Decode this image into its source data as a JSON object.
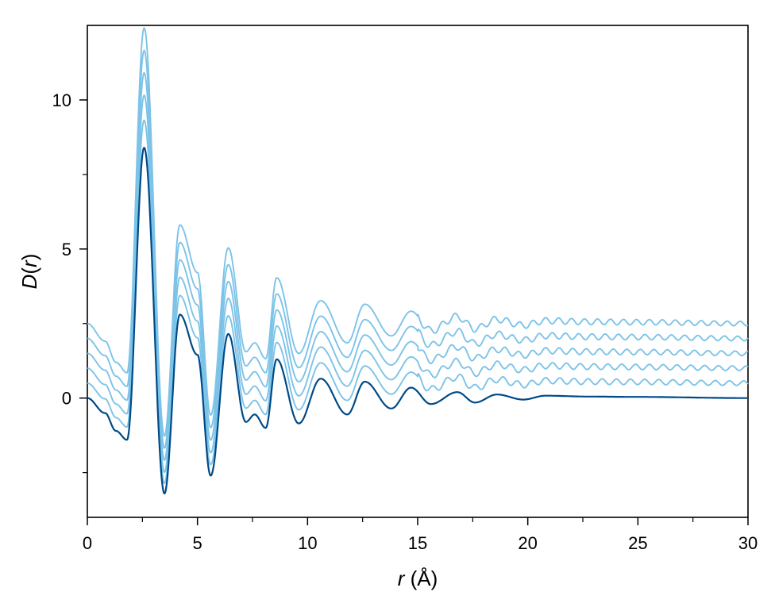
{
  "chart_data": {
    "type": "line",
    "xlabel": {
      "var": "r",
      "unit": " (Å)"
    },
    "ylabel": {
      "var_D": "D",
      "open": "(",
      "var_r": "r",
      "close": ")"
    },
    "xlim": [
      0,
      30
    ],
    "ylim": [
      -4,
      12.5
    ],
    "xticks": [
      0,
      5,
      10,
      15,
      20,
      25,
      30
    ],
    "xtick_labels": [
      "0",
      "5",
      "10",
      "15",
      "20",
      "25",
      "30"
    ],
    "xminor": [
      2.5,
      7.5,
      12.5,
      17.5,
      22.5,
      27.5
    ],
    "yticks": [
      0,
      5,
      10
    ],
    "ytick_labels": [
      "0",
      "5",
      "10"
    ],
    "yminor": [
      -2.5,
      2.5,
      7.5
    ],
    "grid": false,
    "legend": "none",
    "colors": {
      "offset_series": "#7dc3e8",
      "base_series": "#004a87"
    },
    "peaks": [
      [
        0.8,
        -0.5
      ],
      [
        1.3,
        -1.1
      ],
      [
        1.8,
        -1.4
      ],
      [
        2.58,
        8.4
      ],
      [
        3.5,
        -3.2
      ],
      [
        4.2,
        2.8
      ],
      [
        5.0,
        1.45
      ],
      [
        5.6,
        -2.6
      ],
      [
        6.4,
        2.15
      ],
      [
        7.2,
        -0.8
      ],
      [
        7.6,
        -0.55
      ],
      [
        8.1,
        -1.0
      ],
      [
        8.6,
        1.3
      ],
      [
        9.6,
        -0.85
      ],
      [
        10.6,
        0.65
      ],
      [
        11.8,
        -0.55
      ],
      [
        12.6,
        0.55
      ],
      [
        13.8,
        -0.35
      ],
      [
        14.7,
        0.35
      ],
      [
        15.6,
        -0.2
      ],
      [
        16.8,
        0.2
      ],
      [
        17.6,
        -0.15
      ],
      [
        18.6,
        0.12
      ],
      [
        19.8,
        -0.05
      ],
      [
        20.8,
        0.08
      ],
      [
        22.8,
        0.05
      ],
      [
        24.8,
        0.04
      ]
    ],
    "series": [
      {
        "offset": 2.5,
        "peak_scale": 1.18,
        "color": "#7dc3e8"
      },
      {
        "offset": 2.0,
        "peak_scale": 1.15,
        "color": "#7dc3e8"
      },
      {
        "offset": 1.5,
        "peak_scale": 1.12,
        "color": "#7dc3e8"
      },
      {
        "offset": 1.0,
        "peak_scale": 1.09,
        "color": "#7dc3e8"
      },
      {
        "offset": 0.5,
        "peak_scale": 1.05,
        "color": "#7dc3e8"
      },
      {
        "offset": 0.0,
        "peak_scale": 1.0,
        "color": "#004a87"
      }
    ]
  }
}
